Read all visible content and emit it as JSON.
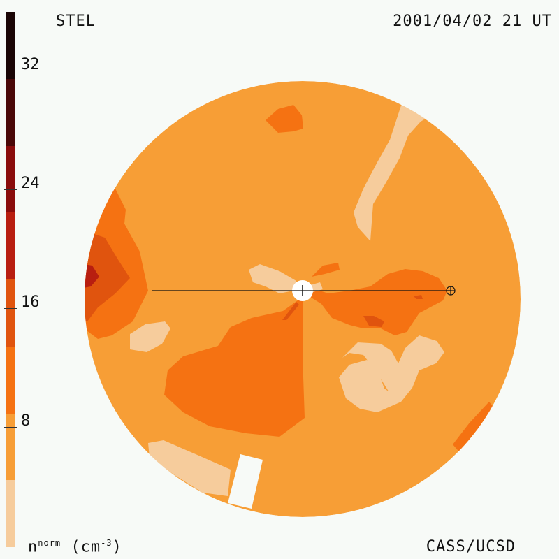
{
  "header": {
    "left": "STEL",
    "right": "2001/04/02 21 UT"
  },
  "footer": {
    "unit_main": "n",
    "unit_sup": "norm",
    "unit_rest": " (cm",
    "unit_exp": "-3",
    "unit_end": ")",
    "credit": "CASS/UCSD"
  },
  "colorbar": {
    "ticks": [
      "32",
      "24",
      "16",
      "8"
    ],
    "bands": [
      "#1a0505",
      "#4a0808",
      "#8a0c0c",
      "#b81e10",
      "#e0540e",
      "#f57212",
      "#f79e36",
      "#f6cc9c"
    ]
  },
  "map": {
    "colors": {
      "light": "#f6cc9c",
      "base": "#f79e36",
      "mid": "#f57212",
      "darker": "#e0540e",
      "dark": "#b81e10"
    }
  }
}
